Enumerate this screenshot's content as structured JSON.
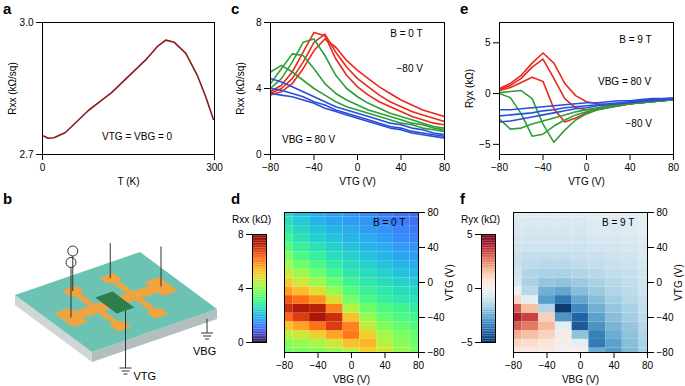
{
  "chart_data": [
    {
      "panel": "a",
      "type": "line",
      "xlabel": "T (K)",
      "ylabel": "Rxx (kΩ/sq)",
      "xlim": [
        0,
        300
      ],
      "xticks": [
        0,
        300
      ],
      "ylim": [
        2.7,
        3.0
      ],
      "yticks": [
        2.7,
        {
          "value": 3,
          "label": "3.0"
        }
      ],
      "x": [
        2,
        10,
        20,
        40,
        60,
        80,
        100,
        120,
        140,
        160,
        180,
        200,
        215,
        230,
        250,
        270,
        285,
        298
      ],
      "series": [
        {
          "color": "#8b1a1a",
          "values": [
            2.742,
            2.737,
            2.738,
            2.75,
            2.775,
            2.8,
            2.82,
            2.84,
            2.865,
            2.89,
            2.915,
            2.945,
            2.96,
            2.955,
            2.93,
            2.88,
            2.83,
            2.78
          ]
        }
      ],
      "annotations": [
        {
          "text": "VTG = VBG = 0",
          "x": 165,
          "y": 2.74
        }
      ]
    },
    {
      "panel": "c",
      "type": "line",
      "xlabel": "VTG (V)",
      "ylabel": "Rxx (kΩ/sq)",
      "xlim": [
        -80,
        80
      ],
      "xticks": [
        -80,
        -40,
        0,
        40,
        80
      ],
      "ylim": [
        0,
        8
      ],
      "yticks": [
        0,
        4,
        8
      ],
      "x": [
        -80,
        -70,
        -60,
        -50,
        -40,
        -30,
        -20,
        -10,
        0,
        10,
        20,
        30,
        40,
        50,
        60,
        70,
        80
      ],
      "series": [
        {
          "color": "#e8291c",
          "values": [
            3.6,
            3.8,
            4.3,
            5.2,
            6.3,
            7.0,
            6.5,
            5.7,
            5.1,
            4.6,
            4.1,
            3.7,
            3.3,
            3.0,
            2.7,
            2.5,
            2.3
          ]
        },
        {
          "color": "#e8291c",
          "values": [
            3.7,
            4.0,
            4.6,
            5.6,
            6.8,
            7.3,
            6.2,
            5.3,
            4.6,
            4.1,
            3.6,
            3.2,
            2.9,
            2.6,
            2.4,
            2.2,
            2.0
          ]
        },
        {
          "color": "#e8291c",
          "values": [
            3.8,
            4.2,
            5.0,
            6.2,
            7.4,
            7.2,
            5.8,
            4.8,
            4.1,
            3.6,
            3.2,
            2.9,
            2.6,
            2.3,
            2.1,
            1.9,
            1.8
          ]
        },
        {
          "color": "#2e9e3a",
          "values": [
            4.0,
            4.6,
            5.6,
            6.8,
            7.0,
            6.0,
            4.8,
            4.0,
            3.5,
            3.1,
            2.8,
            2.5,
            2.3,
            2.1,
            1.9,
            1.7,
            1.6
          ]
        },
        {
          "color": "#2e9e3a",
          "values": [
            4.3,
            5.2,
            6.1,
            6.0,
            5.2,
            4.3,
            3.7,
            3.3,
            3.0,
            2.7,
            2.5,
            2.3,
            2.1,
            1.9,
            1.8,
            1.6,
            1.5
          ]
        },
        {
          "color": "#2e9e3a",
          "values": [
            5.0,
            5.4,
            5.0,
            4.5,
            4.0,
            3.6,
            3.2,
            2.9,
            2.7,
            2.5,
            2.3,
            2.1,
            1.9,
            1.8,
            1.6,
            1.5,
            1.4
          ]
        },
        {
          "color": "#2a4fd6",
          "values": [
            4.6,
            4.4,
            4.1,
            3.8,
            3.5,
            3.2,
            2.9,
            2.7,
            2.5,
            2.3,
            2.1,
            1.9,
            1.8,
            1.6,
            1.5,
            1.3,
            1.2
          ]
        },
        {
          "color": "#2a4fd6",
          "values": [
            4.0,
            3.9,
            3.7,
            3.5,
            3.2,
            3.0,
            2.7,
            2.5,
            2.3,
            2.1,
            1.9,
            1.7,
            1.6,
            1.4,
            1.3,
            1.2,
            1.1
          ]
        },
        {
          "color": "#2a4fd6",
          "values": [
            3.7,
            3.6,
            3.5,
            3.3,
            3.1,
            2.8,
            2.6,
            2.4,
            2.2,
            2.0,
            1.8,
            1.6,
            1.5,
            1.3,
            1.2,
            1.1,
            1.0
          ]
        }
      ],
      "annotations": [
        {
          "text": "B = 0 T",
          "x": 45,
          "y": 7.3
        },
        {
          "text": "−80 V",
          "x": 48,
          "y": 5.2
        },
        {
          "text": "VBG = 80 V",
          "x": -45,
          "y": 0.9
        }
      ]
    },
    {
      "panel": "e",
      "type": "line",
      "xlabel": "VTG (V)",
      "ylabel": "Ryx (kΩ)",
      "xlim": [
        -80,
        80
      ],
      "xticks": [
        -80,
        -40,
        0,
        40,
        80
      ],
      "ylim": [
        -6,
        7
      ],
      "yticks": [
        -5,
        0,
        5
      ],
      "x": [
        -80,
        -70,
        -60,
        -50,
        -40,
        -30,
        -20,
        -10,
        0,
        10,
        20,
        30,
        40,
        50,
        60,
        70,
        80
      ],
      "series": [
        {
          "color": "#e8291c",
          "values": [
            0.5,
            1.0,
            1.8,
            3.0,
            4.0,
            3.0,
            1.0,
            -0.2,
            -0.8,
            -1.0,
            -1.1,
            -1.1,
            -1.0,
            -0.9,
            -0.8,
            -0.7,
            -0.6
          ]
        },
        {
          "color": "#e8291c",
          "values": [
            0.4,
            0.8,
            1.5,
            2.6,
            3.4,
            1.5,
            -0.5,
            -1.4,
            -1.6,
            -1.5,
            -1.3,
            -1.2,
            -1.0,
            -0.9,
            -0.8,
            -0.7,
            -0.6
          ]
        },
        {
          "color": "#e8291c",
          "values": [
            0.3,
            0.6,
            1.1,
            1.6,
            1.2,
            -1.5,
            -2.8,
            -2.4,
            -1.9,
            -1.6,
            -1.4,
            -1.2,
            -1.0,
            -0.9,
            -0.8,
            -0.7,
            -0.6
          ]
        },
        {
          "color": "#2e9e3a",
          "values": [
            0.1,
            0.2,
            0.3,
            -0.5,
            -3.0,
            -4.8,
            -3.6,
            -2.6,
            -2.0,
            -1.6,
            -1.4,
            -1.2,
            -1.0,
            -0.9,
            -0.8,
            -0.7,
            -0.6
          ]
        },
        {
          "color": "#2e9e3a",
          "values": [
            0.0,
            -0.4,
            -2.0,
            -4.2,
            -4.0,
            -3.2,
            -2.6,
            -2.1,
            -1.8,
            -1.5,
            -1.3,
            -1.1,
            -1.0,
            -0.9,
            -0.8,
            -0.7,
            -0.6
          ]
        },
        {
          "color": "#2e9e3a",
          "values": [
            -2.5,
            -3.5,
            -3.4,
            -3.0,
            -2.7,
            -2.4,
            -2.1,
            -1.8,
            -1.6,
            -1.4,
            -1.2,
            -1.1,
            -0.9,
            -0.8,
            -0.7,
            -0.6,
            -0.6
          ]
        },
        {
          "color": "#2a4fd6",
          "values": [
            -2.8,
            -2.7,
            -2.5,
            -2.3,
            -2.1,
            -1.9,
            -1.7,
            -1.5,
            -1.4,
            -1.2,
            -1.1,
            -1.0,
            -0.9,
            -0.8,
            -0.7,
            -0.6,
            -0.5
          ]
        },
        {
          "color": "#2a4fd6",
          "values": [
            -2.2,
            -2.1,
            -2.0,
            -1.9,
            -1.7,
            -1.6,
            -1.4,
            -1.3,
            -1.2,
            -1.1,
            -1.0,
            -0.9,
            -0.8,
            -0.7,
            -0.6,
            -0.6,
            -0.5
          ]
        },
        {
          "color": "#2a4fd6",
          "values": [
            -1.6,
            -1.6,
            -1.5,
            -1.4,
            -1.3,
            -1.2,
            -1.1,
            -1.0,
            -0.9,
            -0.9,
            -0.8,
            -0.7,
            -0.7,
            -0.6,
            -0.5,
            -0.5,
            -0.4
          ]
        }
      ],
      "annotations": [
        {
          "text": "B = 9 T",
          "x": 45,
          "y": 5.3
        },
        {
          "text": "VBG = 80 V",
          "x": 35,
          "y": 1.2
        },
        {
          "text": "−80 V",
          "x": 48,
          "y": -3.0
        }
      ]
    },
    {
      "panel": "d",
      "type": "heatmap",
      "xlabel": "VBG (V)",
      "ylabel": "VTG (V)",
      "xlim": [
        -80,
        80
      ],
      "xticks": [
        -80,
        -40,
        0,
        40,
        80
      ],
      "ylim": [
        -80,
        80
      ],
      "yticks": [
        -80,
        -40,
        0,
        40,
        80
      ],
      "x": [
        -80,
        -60,
        -40,
        -20,
        0,
        20,
        40,
        60,
        80
      ],
      "y": [
        -80,
        -70,
        -60,
        -50,
        -40,
        -30,
        -20,
        -10,
        0,
        10,
        20,
        30,
        40,
        50,
        60,
        70,
        80
      ],
      "z": [
        [
          3.6,
          3.8,
          4.3,
          5.2,
          6.3,
          7.0,
          6.5,
          5.7,
          5.1,
          4.6,
          4.1,
          3.7,
          3.3,
          3.0,
          2.7,
          2.5,
          2.3
        ],
        [
          3.7,
          4.0,
          4.6,
          5.6,
          6.8,
          7.3,
          6.2,
          5.3,
          4.6,
          4.1,
          3.6,
          3.2,
          2.9,
          2.6,
          2.4,
          2.2,
          2.0
        ],
        [
          3.8,
          4.2,
          5.0,
          6.2,
          7.4,
          7.2,
          5.8,
          4.8,
          4.1,
          3.6,
          3.2,
          2.9,
          2.6,
          2.3,
          2.1,
          1.9,
          1.8
        ],
        [
          4.0,
          4.6,
          5.6,
          6.8,
          7.0,
          6.0,
          4.8,
          4.0,
          3.5,
          3.1,
          2.8,
          2.5,
          2.3,
          2.1,
          1.9,
          1.7,
          1.6
        ],
        [
          4.3,
          5.2,
          6.1,
          6.0,
          5.2,
          4.3,
          3.7,
          3.3,
          3.0,
          2.7,
          2.5,
          2.3,
          2.1,
          1.9,
          1.8,
          1.6,
          1.5
        ],
        [
          5.0,
          5.4,
          5.0,
          4.5,
          4.0,
          3.6,
          3.2,
          2.9,
          2.7,
          2.5,
          2.3,
          2.1,
          1.9,
          1.8,
          1.6,
          1.5,
          1.4
        ],
        [
          4.6,
          4.4,
          4.1,
          3.8,
          3.5,
          3.2,
          2.9,
          2.7,
          2.5,
          2.3,
          2.1,
          1.9,
          1.8,
          1.6,
          1.5,
          1.3,
          1.2
        ],
        [
          4.0,
          3.9,
          3.7,
          3.5,
          3.2,
          3.0,
          2.7,
          2.5,
          2.3,
          2.1,
          1.9,
          1.7,
          1.6,
          1.4,
          1.3,
          1.2,
          1.1
        ],
        [
          3.7,
          3.6,
          3.5,
          3.3,
          3.1,
          2.8,
          2.6,
          2.4,
          2.2,
          2.0,
          1.8,
          1.6,
          1.5,
          1.3,
          1.2,
          1.1,
          1.0
        ]
      ],
      "colorbar": {
        "label": "Rxx (kΩ)",
        "lim": [
          0,
          8
        ],
        "ticks": [
          0,
          4,
          8
        ]
      },
      "annotations": [
        {
          "text": "B = 0 T",
          "x": 45,
          "y": 68
        }
      ]
    },
    {
      "panel": "f",
      "type": "heatmap",
      "xlabel": "VBG (V)",
      "ylabel": "VTG (V)",
      "xlim": [
        -80,
        80
      ],
      "xticks": [
        -80,
        -40,
        0,
        40,
        80
      ],
      "ylim": [
        -80,
        80
      ],
      "yticks": [
        -80,
        -40,
        0,
        40,
        80
      ],
      "x": [
        -80,
        -60,
        -40,
        -20,
        0,
        20,
        40,
        60,
        80
      ],
      "y": [
        -80,
        -70,
        -60,
        -50,
        -40,
        -30,
        -20,
        -10,
        0,
        10,
        20,
        30,
        40,
        50,
        60,
        70,
        80
      ],
      "z": [
        [
          0.5,
          1.0,
          1.8,
          3.0,
          4.0,
          3.0,
          1.0,
          -0.2,
          -0.8,
          -1.0,
          -1.1,
          -1.1,
          -1.0,
          -0.9,
          -0.8,
          -0.7,
          -0.6
        ],
        [
          0.4,
          0.8,
          1.5,
          2.6,
          3.4,
          1.5,
          -0.5,
          -1.4,
          -1.6,
          -1.5,
          -1.3,
          -1.2,
          -1.0,
          -0.9,
          -0.8,
          -0.7,
          -0.6
        ],
        [
          0.3,
          0.6,
          1.1,
          1.6,
          1.2,
          -1.5,
          -2.8,
          -2.4,
          -1.9,
          -1.6,
          -1.4,
          -1.2,
          -1.0,
          -0.9,
          -0.8,
          -0.7,
          -0.6
        ],
        [
          0.1,
          0.2,
          0.3,
          -0.5,
          -3.0,
          -4.8,
          -3.6,
          -2.6,
          -2.0,
          -1.6,
          -1.4,
          -1.2,
          -1.0,
          -0.9,
          -0.8,
          -0.7,
          -0.6
        ],
        [
          0.0,
          -0.4,
          -2.0,
          -4.2,
          -4.0,
          -3.2,
          -2.6,
          -2.1,
          -1.8,
          -1.5,
          -1.3,
          -1.1,
          -1.0,
          -0.9,
          -0.8,
          -0.7,
          -0.6
        ],
        [
          -2.5,
          -3.5,
          -3.4,
          -3.0,
          -2.7,
          -2.4,
          -2.1,
          -1.8,
          -1.6,
          -1.4,
          -1.2,
          -1.1,
          -0.9,
          -0.8,
          -0.7,
          -0.6,
          -0.6
        ],
        [
          -2.8,
          -2.7,
          -2.5,
          -2.3,
          -2.1,
          -1.9,
          -1.7,
          -1.5,
          -1.4,
          -1.2,
          -1.1,
          -1.0,
          -0.9,
          -0.8,
          -0.7,
          -0.6,
          -0.5
        ],
        [
          -2.2,
          -2.1,
          -2.0,
          -1.9,
          -1.7,
          -1.6,
          -1.4,
          -1.3,
          -1.2,
          -1.1,
          -1.0,
          -0.9,
          -0.8,
          -0.7,
          -0.6,
          -0.6,
          -0.5
        ],
        [
          -1.6,
          -1.6,
          -1.5,
          -1.4,
          -1.3,
          -1.2,
          -1.1,
          -1.0,
          -0.9,
          -0.9,
          -0.8,
          -0.7,
          -0.7,
          -0.6,
          -0.5,
          -0.5,
          -0.4
        ]
      ],
      "colorbar": {
        "label": "Ryx (kΩ)",
        "lim": [
          -5,
          5
        ],
        "ticks": [
          -5,
          0,
          5
        ]
      },
      "annotations": [
        {
          "text": "B = 9 T",
          "x": 45,
          "y": 68
        }
      ]
    }
  ],
  "diagram": {
    "panel": "b",
    "labels": [
      "VBG",
      "VTG"
    ]
  }
}
